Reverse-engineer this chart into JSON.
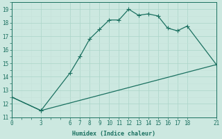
{
  "xlabel": "Humidex (Indice chaleur)",
  "line1_x": [
    0,
    3,
    6,
    7,
    8,
    9,
    10,
    11,
    12,
    13,
    14,
    15,
    16,
    17,
    18,
    21
  ],
  "line1_y": [
    12.5,
    11.5,
    14.3,
    15.5,
    16.8,
    17.5,
    18.2,
    18.2,
    19.0,
    18.55,
    18.65,
    18.5,
    17.6,
    17.4,
    17.75,
    14.9
  ],
  "line2_x": [
    0,
    3,
    21
  ],
  "line2_y": [
    12.5,
    11.5,
    14.9
  ],
  "line_color": "#1a7060",
  "bg_color": "#cce8e0",
  "grid_major_color": "#aad4c8",
  "grid_minor_color": "#c4e2da",
  "xlim": [
    0,
    21
  ],
  "ylim": [
    11,
    19.5
  ],
  "yticks": [
    11,
    12,
    13,
    14,
    15,
    16,
    17,
    18,
    19
  ],
  "xticks": [
    0,
    3,
    6,
    7,
    8,
    9,
    10,
    11,
    12,
    13,
    14,
    15,
    16,
    17,
    18,
    21
  ],
  "xtick_labels": [
    "0",
    "3",
    "6",
    "7",
    "8",
    "9",
    "10",
    "11",
    "12",
    "13",
    "14",
    "15",
    "16",
    "17",
    "18",
    "21"
  ],
  "marker": "+",
  "marker_size": 4,
  "linewidth": 0.9,
  "tick_fontsize": 5.5,
  "xlabel_fontsize": 6.0,
  "font_family": "monospace"
}
